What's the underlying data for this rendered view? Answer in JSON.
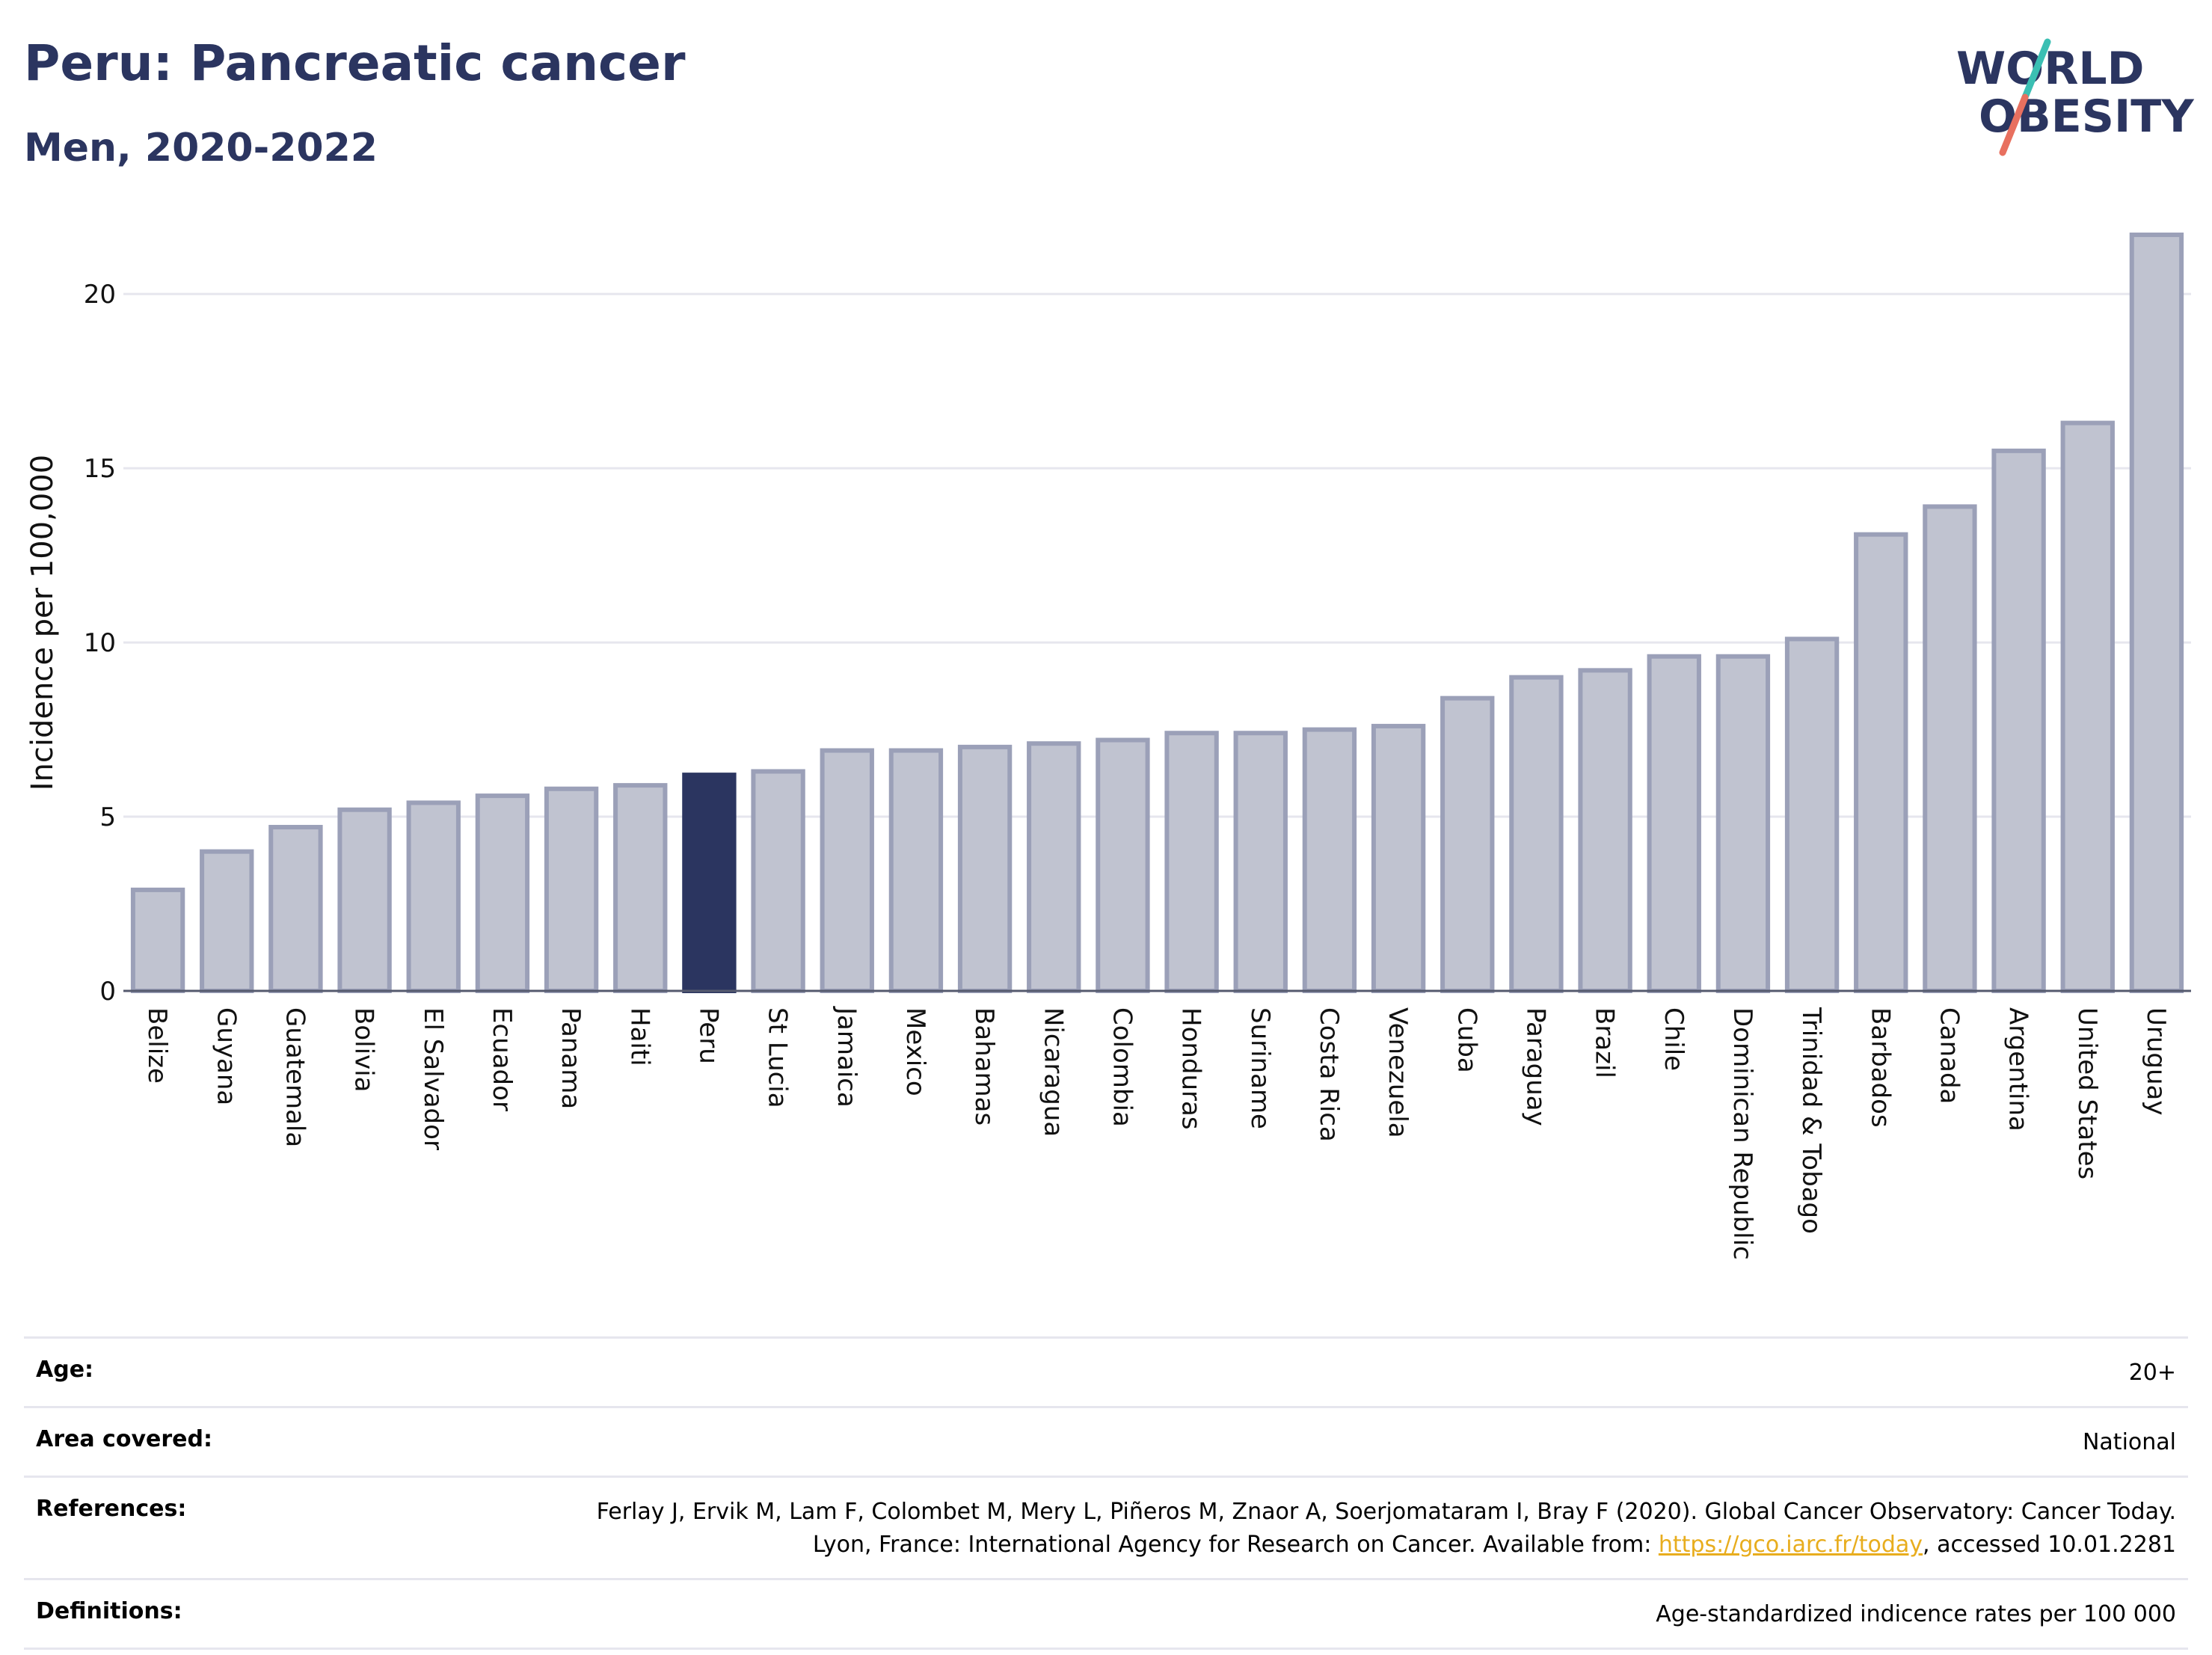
{
  "title": "Peru: Pancreatic cancer",
  "subtitle": "Men, 2020-2022",
  "logo": {
    "line1": "WORLD",
    "line2": "OBESITY"
  },
  "chart_data": {
    "type": "bar",
    "ylabel": "Incidence per 100,000",
    "ylim": [
      0,
      22
    ],
    "yticks": [
      0,
      5,
      10,
      15,
      20
    ],
    "grid": true,
    "highlight": "Peru",
    "colors": {
      "bar": "#c0c3d0",
      "bar_edge": "#9ba0b8",
      "highlight": "#2b3560",
      "grid": "#e6e6ee",
      "axis": "#555a6e"
    },
    "categories": [
      "Belize",
      "Guyana",
      "Guatemala",
      "Bolivia",
      "El Salvador",
      "Ecuador",
      "Panama",
      "Haiti",
      "Peru",
      "St Lucia",
      "Jamaica",
      "Mexico",
      "Bahamas",
      "Nicaragua",
      "Colombia",
      "Honduras",
      "Suriname",
      "Costa Rica",
      "Venezuela",
      "Cuba",
      "Paraguay",
      "Brazil",
      "Chile",
      "Dominican Republic",
      "Trinidad & Tobago",
      "Barbados",
      "Canada",
      "Argentina",
      "United States",
      "Uruguay"
    ],
    "values": [
      2.9,
      4.0,
      4.7,
      5.2,
      5.4,
      5.6,
      5.8,
      5.9,
      6.2,
      6.3,
      6.9,
      6.9,
      7.0,
      7.1,
      7.2,
      7.4,
      7.4,
      7.5,
      7.6,
      8.4,
      9.0,
      9.2,
      9.6,
      9.6,
      10.1,
      13.1,
      13.9,
      15.5,
      16.3,
      21.7
    ]
  },
  "meta": {
    "age": {
      "label": "Age:",
      "value": "20+"
    },
    "area": {
      "label": "Area covered:",
      "value": "National"
    },
    "references": {
      "label": "References:",
      "text_before": "Ferlay J, Ervik M, Lam F, Colombet M, Mery L, Piñeros M, Znaor A, Soerjomataram I, Bray F (2020). Global Cancer Observatory: Cancer Today. Lyon, France: International Agency for Research on Cancer. Available from: ",
      "link": "https://gco.iarc.fr/today",
      "text_after": ", accessed 10.01.2281"
    },
    "definitions": {
      "label": "Definitions:",
      "value": "Age-standardized indicence rates per 100 000"
    }
  }
}
